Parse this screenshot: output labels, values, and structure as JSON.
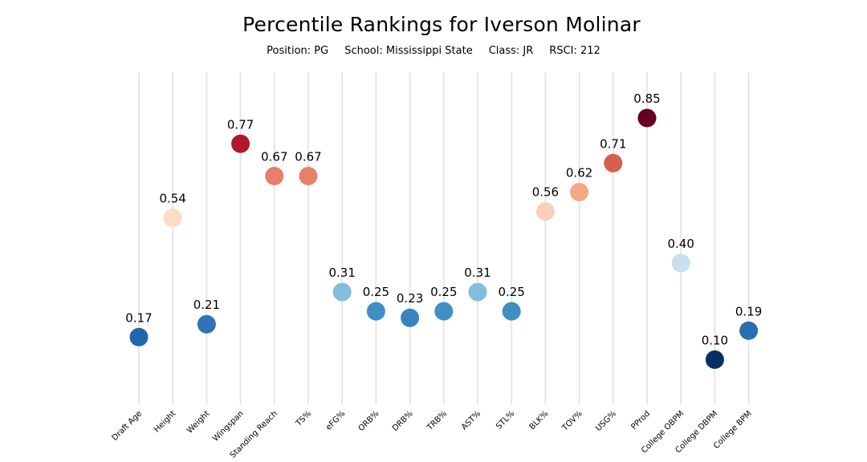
{
  "header": {
    "title": "Percentile Rankings for Iverson Molinar",
    "position": "Position: PG",
    "school": "School: Mississippi State",
    "class": "Class: JR",
    "rsci": "RSCI: 212"
  },
  "chart_data": {
    "type": "scatter",
    "title": "Percentile Rankings for Iverson Molinar",
    "categories": [
      "Draft Age",
      "Height",
      "Weight",
      "Wingspan",
      "Standing Reach",
      "TS%",
      "eFG%",
      "ORB%",
      "DRB%",
      "TRB%",
      "AST%",
      "STL%",
      "BLK%",
      "TOV%",
      "USG%",
      "PProd",
      "College OBPM",
      "College DBPM",
      "College BPM"
    ],
    "values": [
      0.17,
      0.54,
      0.21,
      0.77,
      0.67,
      0.67,
      0.31,
      0.25,
      0.23,
      0.25,
      0.31,
      0.25,
      0.56,
      0.62,
      0.71,
      0.85,
      0.4,
      0.1,
      0.19
    ],
    "value_labels": [
      "0.17",
      "0.54",
      "0.21",
      "0.77",
      "0.67",
      "0.67",
      "0.31",
      "0.25",
      "0.23",
      "0.25",
      "0.31",
      "0.25",
      "0.56",
      "0.62",
      "0.71",
      "0.85",
      "0.40",
      "0.10",
      "0.19"
    ],
    "colors": [
      "#2166ac",
      "#fddbc7",
      "#2e74b6",
      "#b2182b",
      "#e6806a",
      "#e6806a",
      "#84bcdb",
      "#3f8fc4",
      "#3784c0",
      "#3f8fc4",
      "#84bcdb",
      "#3f8fc4",
      "#fbd0b9",
      "#f4a885",
      "#d6604d",
      "#67001f",
      "#c6e0ee",
      "#053061",
      "#276fb1"
    ],
    "ylim": [
      0,
      1
    ],
    "grid": "vertical",
    "colormap": "RdBu_r"
  }
}
